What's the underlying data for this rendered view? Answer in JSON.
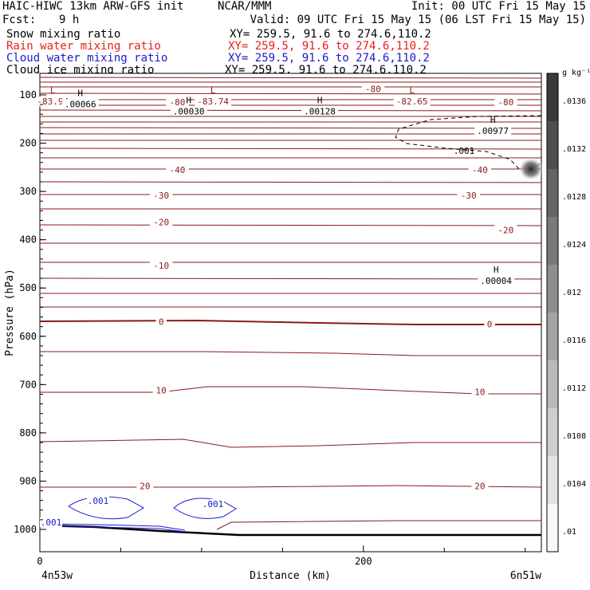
{
  "header": {
    "title": "HAIC-HIWC 13km ARW-GFS init",
    "org": "NCAR/MMM",
    "init": "Init: 00 UTC Fri 15 May 15",
    "fcst_label": "Fcst:",
    "fcst_value": "9 h",
    "valid": "Valid: 09 UTC Fri 15 May 15 (06 LST Fri 15 May 15)"
  },
  "fields": [
    {
      "label": "Snow mixing ratio",
      "xy": "XY= 259.5, 91.6 to 274.6,110.2",
      "color": "#000000"
    },
    {
      "label": "Rain water mixing ratio",
      "xy": "XY= 259.5, 91.6 to 274.6,110.2",
      "color": "#e8201a"
    },
    {
      "label": "Cloud water mixing ratio",
      "xy": "XY= 259.5, 91.6 to 274.6,110.2",
      "color": "#1a1acc"
    },
    {
      "label": "Cloud ice mixing ratio",
      "xy": "XY= 259.5, 91.6 to 274.6,110.2",
      "color": "#000000"
    }
  ],
  "chart_data": {
    "type": "contour",
    "xlabel": "Distance (km)",
    "ylabel": "Pressure (hPa)",
    "xlim": [
      0,
      310
    ],
    "ylim": [
      1050,
      70
    ],
    "x_ticks": [
      "0",
      "200"
    ],
    "x_tick_values": [
      0,
      200
    ],
    "y_ticks": [
      "100",
      "200",
      "300",
      "400",
      "500",
      "600",
      "700",
      "800",
      "900",
      "1000"
    ],
    "y_tick_values": [
      100,
      200,
      300,
      400,
      500,
      600,
      700,
      800,
      900,
      1000
    ],
    "x_endpoints": {
      "left": "4n53w",
      "right": "6n51w"
    },
    "temperature_contour_labels": [
      {
        "label": "-80",
        "x": 85,
        "p": 115
      },
      {
        "label": "-80",
        "x": 206,
        "p": 88
      },
      {
        "label": "-80",
        "x": 288,
        "p": 115
      },
      {
        "label": "-40",
        "x": 85,
        "p": 255
      },
      {
        "label": "-40",
        "x": 272,
        "p": 255
      },
      {
        "label": "-30",
        "x": 75,
        "p": 308
      },
      {
        "label": "-30",
        "x": 265,
        "p": 308
      },
      {
        "label": "-20",
        "x": 75,
        "p": 363
      },
      {
        "label": "-20",
        "x": 288,
        "p": 380
      },
      {
        "label": "-10",
        "x": 75,
        "p": 453
      },
      {
        "label": "0",
        "x": 75,
        "p": 570
      },
      {
        "label": "0",
        "x": 278,
        "p": 575
      },
      {
        "label": "10",
        "x": 75,
        "p": 712
      },
      {
        "label": "10",
        "x": 272,
        "p": 715
      },
      {
        "label": "20",
        "x": 65,
        "p": 910
      },
      {
        "label": "20",
        "x": 272,
        "p": 910
      }
    ],
    "extrema_labels": [
      {
        "type": "L",
        "value": "-83.94",
        "x": 8,
        "p": 107
      },
      {
        "type": "L",
        "value": "-83.74",
        "x": 107,
        "p": 107
      },
      {
        "type": "L",
        "value": "-82.65",
        "x": 230,
        "p": 107
      },
      {
        "type": "H",
        "value": ".00066",
        "x": 25,
        "p": 112
      },
      {
        "type": "H",
        "value": ".00030",
        "x": 92,
        "p": 127
      },
      {
        "type": "H",
        "value": ".00128",
        "x": 173,
        "p": 127
      },
      {
        "type": "H",
        "value": ".00977",
        "x": 280,
        "p": 168
      },
      {
        "type": "H",
        "value": ".00004",
        "x": 282,
        "p": 478
      }
    ],
    "cloud_ice_contour_label": ".001",
    "cloud_water_contour_labels": [
      ".001",
      ".001",
      ".001"
    ],
    "colorbar": {
      "unit": "g kg⁻¹",
      "tick_labels": [
        ".0136",
        ".0132",
        ".0128",
        ".0124",
        ".012",
        ".0116",
        ".0112",
        ".0108",
        ".0104",
        ".01"
      ]
    },
    "colors": {
      "temperature": "#8b1a1a",
      "cloud_water": "#1a1acc",
      "terrain": "#000000"
    }
  }
}
